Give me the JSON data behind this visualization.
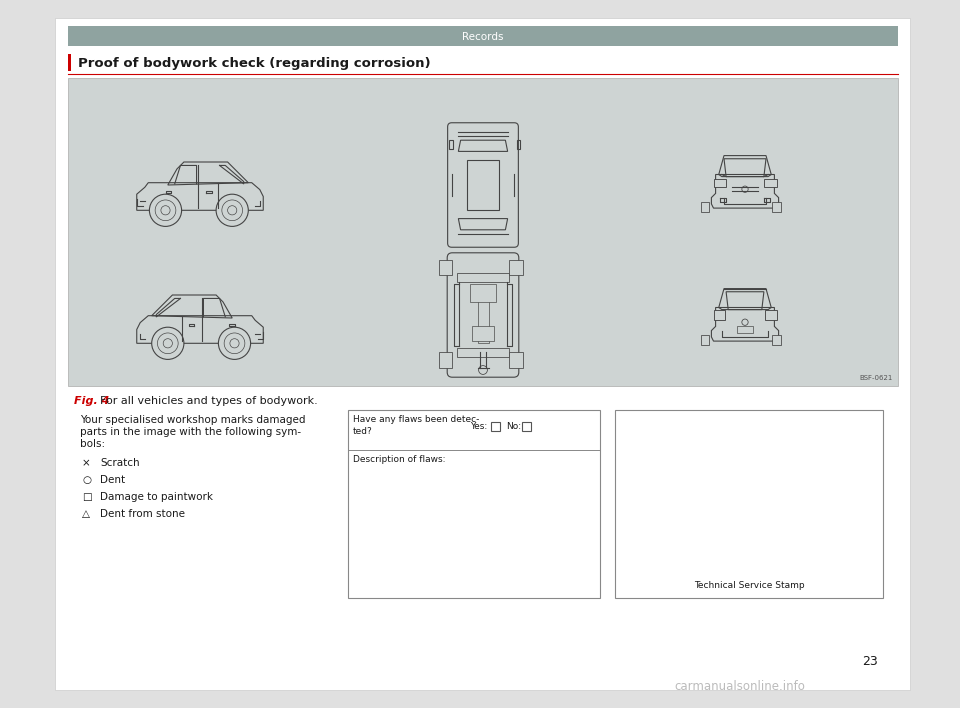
{
  "page_bg": "#e0e0e0",
  "inner_bg": "#ffffff",
  "header_bg": "#8fa3a0",
  "header_text": "Records",
  "header_text_color": "#ffffff",
  "section_title": "Proof of bodywork check (regarding corrosion)",
  "section_title_color": "#1a1a1a",
  "red_bar_color": "#cc0000",
  "car_diagram_bg": "#ced4d3",
  "fig_label": "Fig. 4",
  "fig_label_color": "#cc0000",
  "fig_caption": "  For all vehicles and types of bodywork.",
  "body_text_line1": "Your specialised workshop marks damaged",
  "body_text_line2": "parts in the image with the following sym-",
  "body_text_line3": "bols:",
  "symbols": [
    {
      "symbol": "×",
      "label": "Scratch"
    },
    {
      "symbol": "○",
      "label": "Dent"
    },
    {
      "symbol": "□",
      "label": "Damage to paintwork"
    },
    {
      "symbol": "△",
      "label": "Dent from stone"
    }
  ],
  "form_title1": "Have any flaws been detec-",
  "form_title2": "ted?",
  "form_yes": "Yes:",
  "form_no": "No:",
  "form_desc": "Description of flaws:",
  "stamp_label": "Technical Service Stamp",
  "page_number": "23",
  "watermark": "carmanualsonline.info",
  "ref_code": "BSF-0621",
  "lc": "#444444",
  "lw": 0.8
}
